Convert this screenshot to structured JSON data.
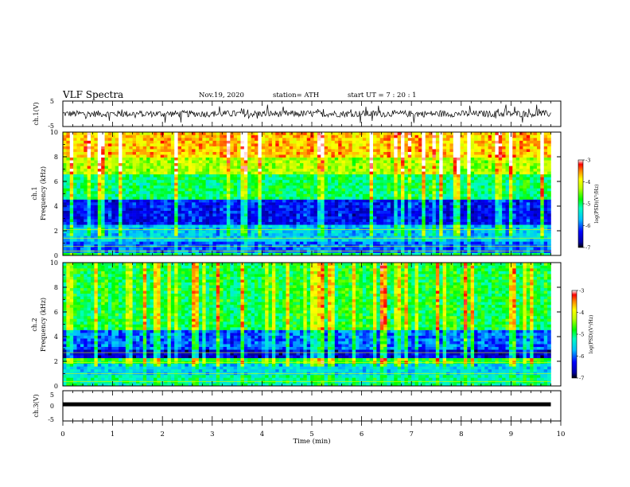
{
  "header": {
    "title": "VLF Spectra",
    "date": "Nov.19, 2020",
    "station": "station= ATH",
    "start": "start  UT  =   7 : 20 : 1"
  },
  "chart_data": [
    {
      "type": "line",
      "id": "ch1-waveform",
      "ylabel": "ch.1(V)",
      "ylim": [
        -5,
        5
      ],
      "yticks": [
        "5",
        "-5"
      ],
      "xlim": [
        0,
        10
      ],
      "description_values": "noisy waveform roughly between -2 and 2 V with spikes near 3 V"
    },
    {
      "type": "heatmap",
      "id": "ch1-spectrogram",
      "title": "ch.1",
      "ylabel": "Frequency  (kHz)",
      "ylim": [
        0,
        10
      ],
      "yticks": [
        "0",
        "2",
        "4",
        "6",
        "8",
        "10"
      ],
      "xlim": [
        0,
        10
      ],
      "colorbar": {
        "label": "log(PSD)(V²/Hz)",
        "range": [
          -7,
          -3
        ],
        "ticks": [
          "-3",
          "-4",
          "-5",
          "-6",
          "-7"
        ]
      },
      "bands_log_psd": [
        {
          "f_from": 0,
          "f_to": 0.3,
          "value": -5.0
        },
        {
          "f_from": 0.3,
          "f_to": 1.2,
          "value": -6.0
        },
        {
          "f_from": 1.2,
          "f_to": 2.5,
          "value": -5.6
        },
        {
          "f_from": 2.5,
          "f_to": 4.5,
          "value": -6.3
        },
        {
          "f_from": 4.5,
          "f_to": 6.5,
          "value": -5.0
        },
        {
          "f_from": 6.5,
          "f_to": 8.0,
          "value": -4.3
        },
        {
          "f_from": 8.0,
          "f_to": 10,
          "value": -3.7
        }
      ]
    },
    {
      "type": "heatmap",
      "id": "ch2-spectrogram",
      "title": "ch.2",
      "ylabel": "Frequency  (kHz)",
      "ylim": [
        0,
        10
      ],
      "yticks": [
        "0",
        "2",
        "4",
        "6",
        "8",
        "10"
      ],
      "xlim": [
        0,
        10
      ],
      "colorbar": {
        "label": "log(PSD)(V²/Hz)",
        "range": [
          -7,
          -3
        ],
        "ticks": [
          "-3",
          "-4",
          "-5",
          "-6",
          "-7"
        ]
      },
      "bands_log_psd": [
        {
          "f_from": 0,
          "f_to": 0.8,
          "value": -5.2
        },
        {
          "f_from": 0.8,
          "f_to": 1.8,
          "value": -5.6
        },
        {
          "f_from": 1.8,
          "f_to": 2.2,
          "value": -4.8
        },
        {
          "f_from": 2.2,
          "f_to": 3.0,
          "value": -6.5
        },
        {
          "f_from": 3.0,
          "f_to": 4.6,
          "value": -6.0
        },
        {
          "f_from": 4.6,
          "f_to": 10,
          "value": -4.9
        }
      ]
    },
    {
      "type": "line",
      "id": "ch3-waveform",
      "ylabel": "ch.3(V)",
      "ylim": [
        -5,
        5
      ],
      "yticks": [
        "5",
        "0",
        "-5"
      ],
      "xlim": [
        0,
        10
      ],
      "constant_value": 0.5
    }
  ],
  "xaxis": {
    "label": "Time  (min)",
    "ticks": [
      "0",
      "1",
      "2",
      "3",
      "4",
      "5",
      "6",
      "7",
      "8",
      "9",
      "10"
    ]
  }
}
